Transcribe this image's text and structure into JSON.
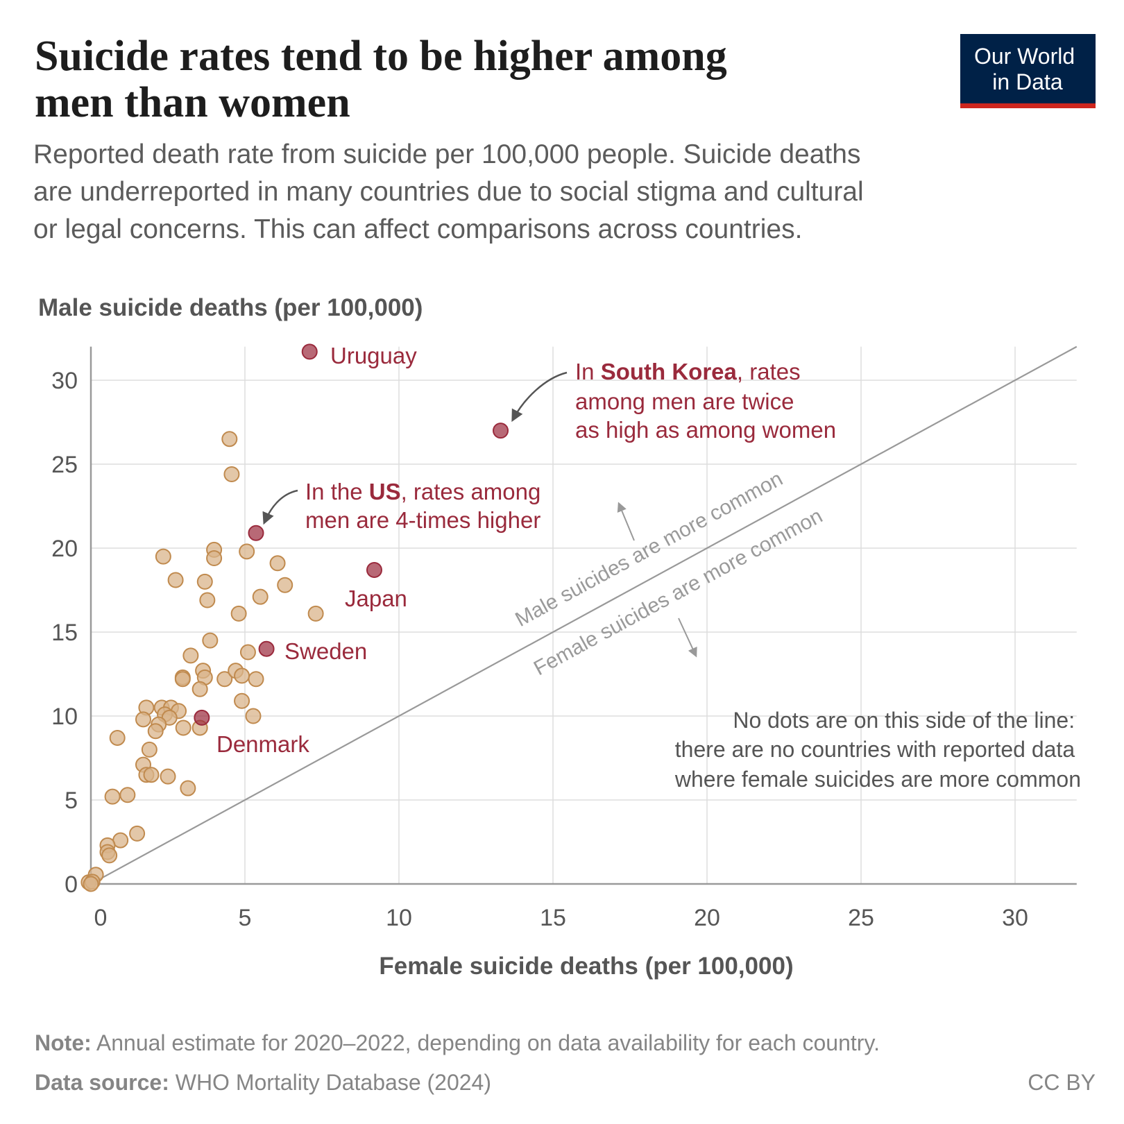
{
  "header": {
    "title_lines": [
      "Suicide rates tend to be higher among",
      "men than women"
    ],
    "subtitle_lines": [
      "Reported death rate from suicide per 100,000 people. Suicide deaths",
      "are underreported in many countries due to social stigma and cultural",
      "or legal concerns. This can affect comparisons across countries."
    ],
    "logo_lines": [
      "Our World",
      "in Data"
    ]
  },
  "colors": {
    "highlight": "#9a2a3c",
    "points": "#d9b48b",
    "points_stroke": "#c08a4e",
    "logo_bg": "#002147",
    "logo_accent": "#ce261e",
    "text": "#555555"
  },
  "chart_data": {
    "type": "scatter",
    "xlabel": "Female suicide deaths (per 100,000)",
    "ylabel": "Male suicide deaths (per 100,000)",
    "xlim": [
      0,
      32
    ],
    "ylim": [
      0,
      32
    ],
    "xticks": [
      "0",
      "5",
      "10",
      "15",
      "20",
      "25",
      "30"
    ],
    "yticks": [
      "0",
      "5",
      "10",
      "15",
      "20",
      "25",
      "30"
    ],
    "grid": true,
    "reference_line": "y = x",
    "highlighted": [
      {
        "label": "Uruguay",
        "x": 7.1,
        "y": 31.7
      },
      {
        "label": "",
        "x": 13.3,
        "y": 27.0
      },
      {
        "label": "",
        "x": 5.36,
        "y": 20.9
      },
      {
        "label": "Japan",
        "x": 9.2,
        "y": 18.7
      },
      {
        "label": "Sweden",
        "x": 5.7,
        "y": 14.0
      },
      {
        "label": "Denmark",
        "x": 3.6,
        "y": 9.9
      }
    ],
    "points": [
      [
        4.5,
        26.5
      ],
      [
        4.57,
        24.4
      ],
      [
        2.35,
        19.5
      ],
      [
        4.0,
        19.9
      ],
      [
        4.0,
        19.4
      ],
      [
        5.06,
        19.8
      ],
      [
        6.06,
        19.1
      ],
      [
        2.75,
        18.1
      ],
      [
        3.7,
        18.0
      ],
      [
        3.78,
        16.9
      ],
      [
        5.5,
        17.1
      ],
      [
        6.3,
        17.8
      ],
      [
        4.8,
        16.1
      ],
      [
        7.3,
        16.1
      ],
      [
        3.87,
        14.5
      ],
      [
        5.1,
        13.8
      ],
      [
        3.24,
        13.6
      ],
      [
        2.98,
        12.3
      ],
      [
        2.98,
        12.2
      ],
      [
        3.64,
        12.7
      ],
      [
        3.7,
        12.3
      ],
      [
        3.54,
        11.6
      ],
      [
        4.34,
        12.2
      ],
      [
        4.7,
        12.7
      ],
      [
        4.9,
        12.4
      ],
      [
        5.36,
        12.2
      ],
      [
        4.9,
        10.9
      ],
      [
        5.27,
        10.0
      ],
      [
        2.3,
        10.5
      ],
      [
        1.8,
        10.5
      ],
      [
        2.6,
        10.5
      ],
      [
        2.85,
        10.3
      ],
      [
        1.7,
        9.8
      ],
      [
        2.4,
        10.1
      ],
      [
        2.55,
        9.9
      ],
      [
        2.2,
        9.5
      ],
      [
        2.1,
        9.1
      ],
      [
        3.0,
        9.3
      ],
      [
        3.54,
        9.3
      ],
      [
        0.86,
        8.7
      ],
      [
        1.9,
        8.0
      ],
      [
        1.7,
        7.1
      ],
      [
        1.8,
        6.5
      ],
      [
        1.96,
        6.5
      ],
      [
        2.5,
        6.4
      ],
      [
        3.15,
        5.7
      ],
      [
        0.7,
        5.2
      ],
      [
        1.19,
        5.3
      ],
      [
        1.5,
        3.0
      ],
      [
        0.96,
        2.6
      ],
      [
        0.54,
        2.3
      ],
      [
        0.54,
        1.9
      ],
      [
        0.6,
        1.7
      ],
      [
        0.16,
        0.55
      ],
      [
        -0.07,
        0.1
      ],
      [
        0.05,
        0.13
      ],
      [
        0.0,
        0.0
      ]
    ],
    "annotations": {
      "south_korea": [
        [
          "In ",
          "South Korea",
          ", rates"
        ],
        [
          "among men are twice"
        ],
        [
          "as high as among women"
        ]
      ],
      "us": [
        [
          "In the ",
          "US",
          ", rates among"
        ],
        [
          "men are 4-times higher"
        ]
      ],
      "male_side": "Male suicides are more common",
      "female_side": "Female suicides are more common",
      "no_dots": [
        "No dots are on this side of the line:",
        "there are no countries with reported data",
        "where female suicides are more common"
      ]
    }
  },
  "footer": {
    "note_label": "Note:",
    "note_text": " Annual estimate for 2020–2022, depending on data availability for each country.",
    "source_label": "Data source:",
    "source_text": " WHO Mortality Database (2024)",
    "license": "CC BY"
  }
}
